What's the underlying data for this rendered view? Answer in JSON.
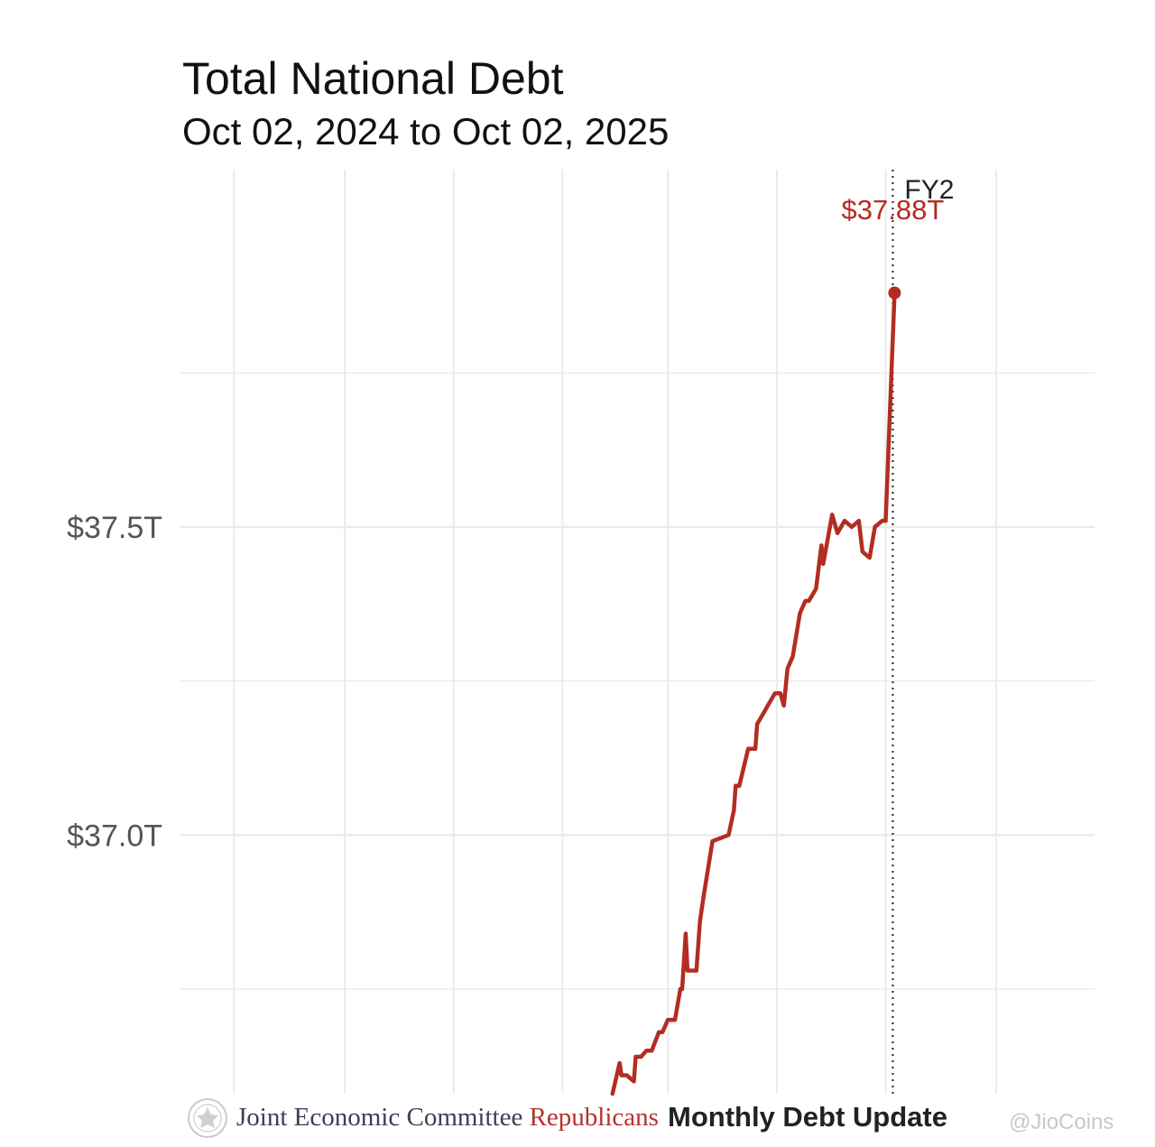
{
  "chart_data": {
    "type": "line",
    "title": "Total National Debt",
    "subtitle": "Oct 02, 2024 to Oct 02, 2025",
    "y_unit": "trillion USD",
    "ylim": [
      36.58,
      38.08
    ],
    "y_ticks": [
      37.0,
      37.5
    ],
    "y_tick_labels": [
      "$37.0T",
      "$37.5T"
    ],
    "y_minor_ticks": [
      36.75,
      37.25,
      37.75
    ],
    "xlim": [
      "2024-06-01",
      "2025-10-26"
    ],
    "grid": true,
    "series": [
      {
        "color": "#b22d22",
        "points": [
          [
            "2025-01-29",
            36.58
          ],
          [
            "2025-02-02",
            36.63
          ],
          [
            "2025-02-03",
            36.61
          ],
          [
            "2025-02-06",
            36.61
          ],
          [
            "2025-02-10",
            36.6
          ],
          [
            "2025-02-11",
            36.64
          ],
          [
            "2025-02-14",
            36.64
          ],
          [
            "2025-02-17",
            36.65
          ],
          [
            "2025-02-20",
            36.65
          ],
          [
            "2025-02-24",
            36.68
          ],
          [
            "2025-02-26",
            36.68
          ],
          [
            "2025-03-01",
            36.7
          ],
          [
            "2025-03-05",
            36.7
          ],
          [
            "2025-03-08",
            36.75
          ],
          [
            "2025-03-09",
            36.75
          ],
          [
            "2025-03-11",
            36.84
          ],
          [
            "2025-03-12",
            36.78
          ],
          [
            "2025-03-17",
            36.78
          ],
          [
            "2025-03-19",
            36.86
          ],
          [
            "2025-03-21",
            36.9
          ],
          [
            "2025-03-26",
            36.99
          ],
          [
            "2025-04-04",
            37.0
          ],
          [
            "2025-04-07",
            37.04
          ],
          [
            "2025-04-08",
            37.08
          ],
          [
            "2025-04-10",
            37.08
          ],
          [
            "2025-04-15",
            37.14
          ],
          [
            "2025-04-19",
            37.14
          ],
          [
            "2025-04-20",
            37.18
          ],
          [
            "2025-04-24",
            37.2
          ],
          [
            "2025-04-26",
            37.21
          ],
          [
            "2025-04-30",
            37.23
          ],
          [
            "2025-05-03",
            37.23
          ],
          [
            "2025-05-05",
            37.21
          ],
          [
            "2025-05-07",
            37.27
          ],
          [
            "2025-05-10",
            37.29
          ],
          [
            "2025-05-14",
            37.36
          ],
          [
            "2025-05-17",
            37.38
          ],
          [
            "2025-05-19",
            37.38
          ],
          [
            "2025-05-23",
            37.4
          ],
          [
            "2025-05-26",
            37.47
          ],
          [
            "2025-05-27",
            37.44
          ],
          [
            "2025-06-01",
            37.52
          ],
          [
            "2025-06-04",
            37.49
          ],
          [
            "2025-06-08",
            37.51
          ],
          [
            "2025-06-12",
            37.5
          ],
          [
            "2025-06-16",
            37.51
          ],
          [
            "2025-06-18",
            37.46
          ],
          [
            "2025-06-22",
            37.45
          ],
          [
            "2025-06-25",
            37.5
          ],
          [
            "2025-06-29",
            37.51
          ],
          [
            "2025-07-01",
            37.51
          ],
          [
            "2025-07-06",
            37.88
          ]
        ]
      }
    ],
    "annotations": [
      {
        "type": "vline",
        "x": "2025-07-05",
        "label": "FY2",
        "style": "dotted"
      },
      {
        "type": "point-label",
        "x": "2025-07-06",
        "y": 37.88,
        "label": "$37.88T"
      }
    ]
  },
  "footer": {
    "org_main": "Joint Economic Committee",
    "org_party": "Republicans",
    "series_title": "Monthly Debt Update",
    "watermark": "@JioCoins"
  },
  "colors": {
    "line": "#b22d22",
    "grid": "#ebebeb",
    "vline": "#222222",
    "text": "#111111",
    "axis_text": "#555555"
  }
}
